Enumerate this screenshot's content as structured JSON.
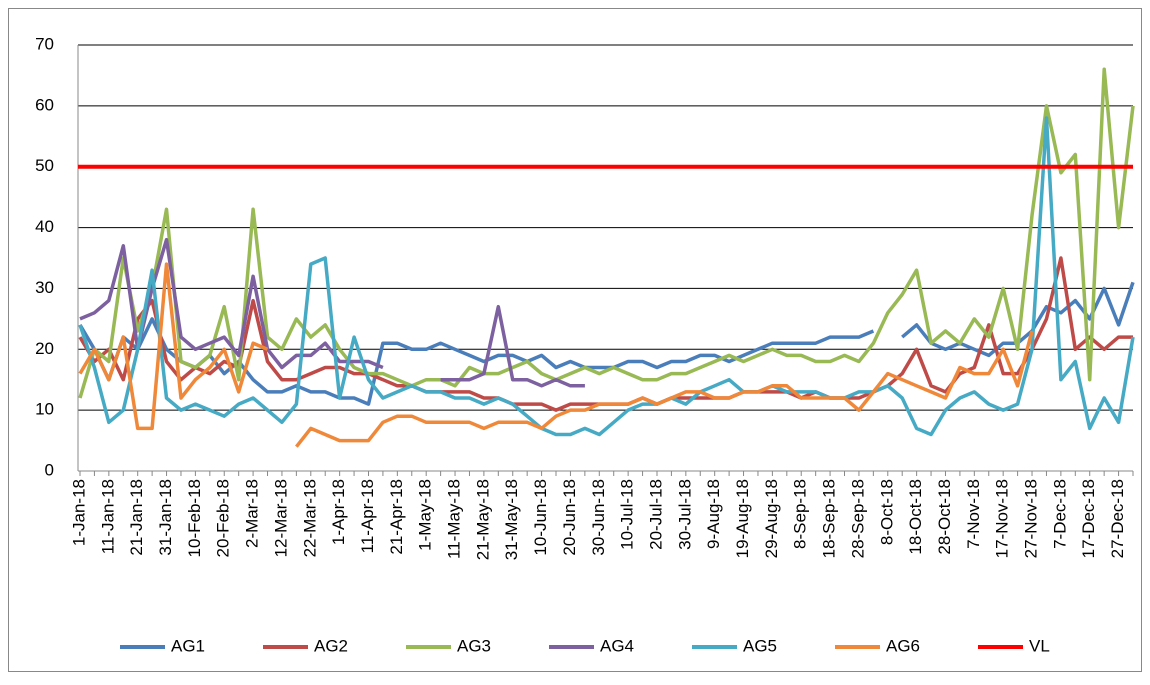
{
  "chart_data": {
    "type": "line",
    "categories": [
      "1-Jan-18",
      null,
      "11-Jan-18",
      null,
      "21-Jan-18",
      null,
      "31-Jan-18",
      null,
      "10-Feb-18",
      null,
      "20-Feb-18",
      null,
      "2-Mar-18",
      null,
      "12-Mar-18",
      null,
      "22-Mar-18",
      null,
      "1-Apr-18",
      null,
      "11-Apr-18",
      null,
      "21-Apr-18",
      null,
      "1-May-18",
      null,
      "11-May-18",
      null,
      "21-May-18",
      null,
      "31-May-18",
      null,
      "10-Jun-18",
      null,
      "20-Jun-18",
      null,
      "30-Jun-18",
      null,
      "10-Jul-18",
      null,
      "20-Jul-18",
      null,
      "30-Jul-18",
      null,
      "9-Aug-18",
      null,
      "19-Aug-18",
      null,
      "29-Aug-18",
      null,
      "8-Sep-18",
      null,
      "18-Sep-18",
      null,
      "28-Sep-18",
      null,
      "8-Oct-18",
      null,
      "18-Oct-18",
      null,
      "28-Oct-18",
      null,
      "7-Nov-18",
      null,
      "17-Nov-18",
      null,
      "27-Nov-18",
      null,
      "7-Dec-18",
      null,
      "17-Dec-18",
      null,
      "27-Dec-18",
      null
    ],
    "series": [
      {
        "name": "AG1",
        "color": "#4a7ebb",
        "values": [
          24,
          20,
          15,
          22,
          20,
          25,
          20,
          18,
          17,
          19,
          16,
          18,
          15,
          13,
          13,
          14,
          13,
          13,
          12,
          12,
          11,
          21,
          21,
          20,
          20,
          21,
          20,
          19,
          18,
          19,
          19,
          18,
          19,
          17,
          18,
          17,
          17,
          17,
          18,
          18,
          17,
          18,
          18,
          19,
          19,
          18,
          19,
          20,
          21,
          21,
          21,
          21,
          22,
          22,
          22,
          23,
          null,
          22,
          24,
          21,
          20,
          21,
          20,
          19,
          21,
          21,
          23,
          27,
          26,
          28,
          25,
          30,
          24,
          31
        ]
      },
      {
        "name": "AG2",
        "color": "#be4b48",
        "values": [
          22,
          18,
          20,
          15,
          25,
          28,
          18,
          15,
          17,
          16,
          18,
          17,
          28,
          18,
          15,
          15,
          16,
          17,
          17,
          16,
          16,
          15,
          14,
          14,
          13,
          13,
          13,
          13,
          12,
          12,
          11,
          11,
          11,
          10,
          11,
          11,
          11,
          11,
          11,
          12,
          11,
          12,
          12,
          12,
          12,
          12,
          13,
          13,
          13,
          13,
          12,
          13,
          12,
          12,
          12,
          13,
          14,
          16,
          20,
          14,
          13,
          16,
          17,
          24,
          16,
          16,
          20,
          25,
          35,
          20,
          22,
          20,
          22,
          22
        ]
      },
      {
        "name": "AG3",
        "color": "#98b954",
        "values": [
          12,
          20,
          18,
          35,
          23,
          30,
          43,
          18,
          17,
          19,
          27,
          15,
          43,
          22,
          20,
          25,
          22,
          24,
          20,
          17,
          16,
          16,
          15,
          14,
          15,
          15,
          14,
          17,
          16,
          16,
          17,
          18,
          16,
          15,
          16,
          17,
          16,
          17,
          16,
          15,
          15,
          16,
          16,
          17,
          18,
          19,
          18,
          19,
          20,
          19,
          19,
          18,
          18,
          19,
          18,
          21,
          26,
          29,
          33,
          21,
          23,
          21,
          25,
          22,
          30,
          20,
          42,
          60,
          49,
          52,
          15,
          66,
          40,
          60
        ]
      },
      {
        "name": "AG4",
        "color": "#7d60a0",
        "values": [
          25,
          26,
          28,
          37,
          20,
          30,
          38,
          22,
          20,
          21,
          22,
          19,
          32,
          20,
          17,
          19,
          19,
          21,
          18,
          18,
          18,
          17,
          null,
          null,
          null,
          15,
          15,
          15,
          16,
          27,
          15,
          15,
          14,
          15,
          14,
          14,
          null,
          null,
          null,
          null,
          null,
          null,
          null,
          null,
          null,
          null,
          null,
          null,
          null,
          null,
          null,
          null,
          null,
          null,
          null,
          null,
          null,
          null,
          null,
          null,
          null,
          null,
          null,
          null,
          null,
          null,
          null,
          null,
          null,
          null,
          null,
          null,
          null,
          null
        ]
      },
      {
        "name": "AG5",
        "color": "#46aac5",
        "values": [
          24,
          17,
          8,
          10,
          20,
          33,
          12,
          10,
          11,
          10,
          9,
          11,
          12,
          10,
          8,
          11,
          34,
          35,
          12,
          22,
          15,
          12,
          13,
          14,
          13,
          13,
          12,
          12,
          11,
          12,
          11,
          9,
          7,
          6,
          6,
          7,
          6,
          8,
          10,
          11,
          11,
          12,
          11,
          13,
          14,
          15,
          13,
          13,
          14,
          13,
          13,
          13,
          12,
          12,
          13,
          13,
          14,
          12,
          7,
          6,
          10,
          12,
          13,
          11,
          10,
          11,
          20,
          58,
          15,
          18,
          7,
          12,
          8,
          22
        ]
      },
      {
        "name": "AG6",
        "color": "#f0883a",
        "values": [
          16,
          20,
          15,
          22,
          7,
          7,
          34,
          12,
          15,
          17,
          20,
          13,
          21,
          20,
          null,
          4,
          7,
          6,
          5,
          5,
          5,
          8,
          9,
          9,
          8,
          8,
          8,
          8,
          7,
          8,
          8,
          8,
          7,
          9,
          10,
          10,
          11,
          11,
          11,
          12,
          11,
          12,
          13,
          13,
          12,
          12,
          13,
          13,
          14,
          14,
          12,
          12,
          12,
          12,
          10,
          13,
          16,
          15,
          14,
          13,
          12,
          17,
          16,
          16,
          20,
          14,
          23,
          null,
          null,
          null,
          null,
          null,
          null,
          null
        ]
      }
    ],
    "reference_line": {
      "name": "VL",
      "value": 50,
      "color": "#ff0000"
    },
    "ylim": [
      0,
      70
    ],
    "yticks": [
      0,
      10,
      20,
      30,
      40,
      50,
      60,
      70
    ],
    "grid": true
  }
}
